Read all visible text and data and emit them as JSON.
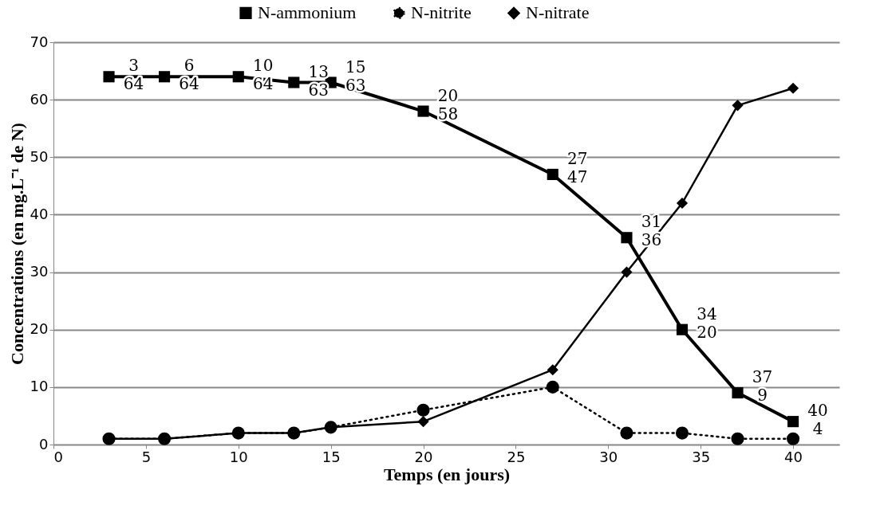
{
  "chart_data": {
    "type": "line",
    "xlabel": "Temps (en jours)",
    "ylabel": "Concentrations  (en mg.L⁻¹ de N)",
    "x": [
      3,
      6,
      10,
      13,
      15,
      20,
      27,
      31,
      34,
      37,
      40
    ],
    "xlim": [
      0,
      42.5
    ],
    "xticks": [
      0,
      5,
      10,
      15,
      20,
      25,
      30,
      35,
      40
    ],
    "ylim": [
      0,
      70
    ],
    "yticks": [
      0,
      10,
      20,
      30,
      40,
      50,
      60,
      70
    ],
    "grid": "y",
    "legend": "top",
    "series": [
      {
        "name": "N-ammonium",
        "color": "#000000",
        "marker": "square",
        "line_style": "solid",
        "values": [
          64,
          64,
          64,
          63,
          63,
          58,
          47,
          36,
          20,
          9,
          4
        ],
        "value_labels": [
          "3\n64",
          "6\n64",
          "10\n64",
          "13\n63",
          "15\n63",
          "20\n58",
          "27\n47",
          "31\n36",
          "34\n20",
          "37\n9",
          "40\n4"
        ]
      },
      {
        "name": "N-nitrite",
        "color": "#000000",
        "marker": "circle",
        "line_style": "dotted",
        "values": [
          1,
          1,
          2,
          2,
          3,
          6,
          10,
          2,
          2,
          1,
          1
        ]
      },
      {
        "name": "N-nitrate",
        "color": "#000000",
        "marker": "diamond",
        "line_style": "solid",
        "values": [
          1,
          1,
          2,
          2,
          3,
          4,
          13,
          30,
          42,
          59,
          62
        ]
      }
    ]
  }
}
